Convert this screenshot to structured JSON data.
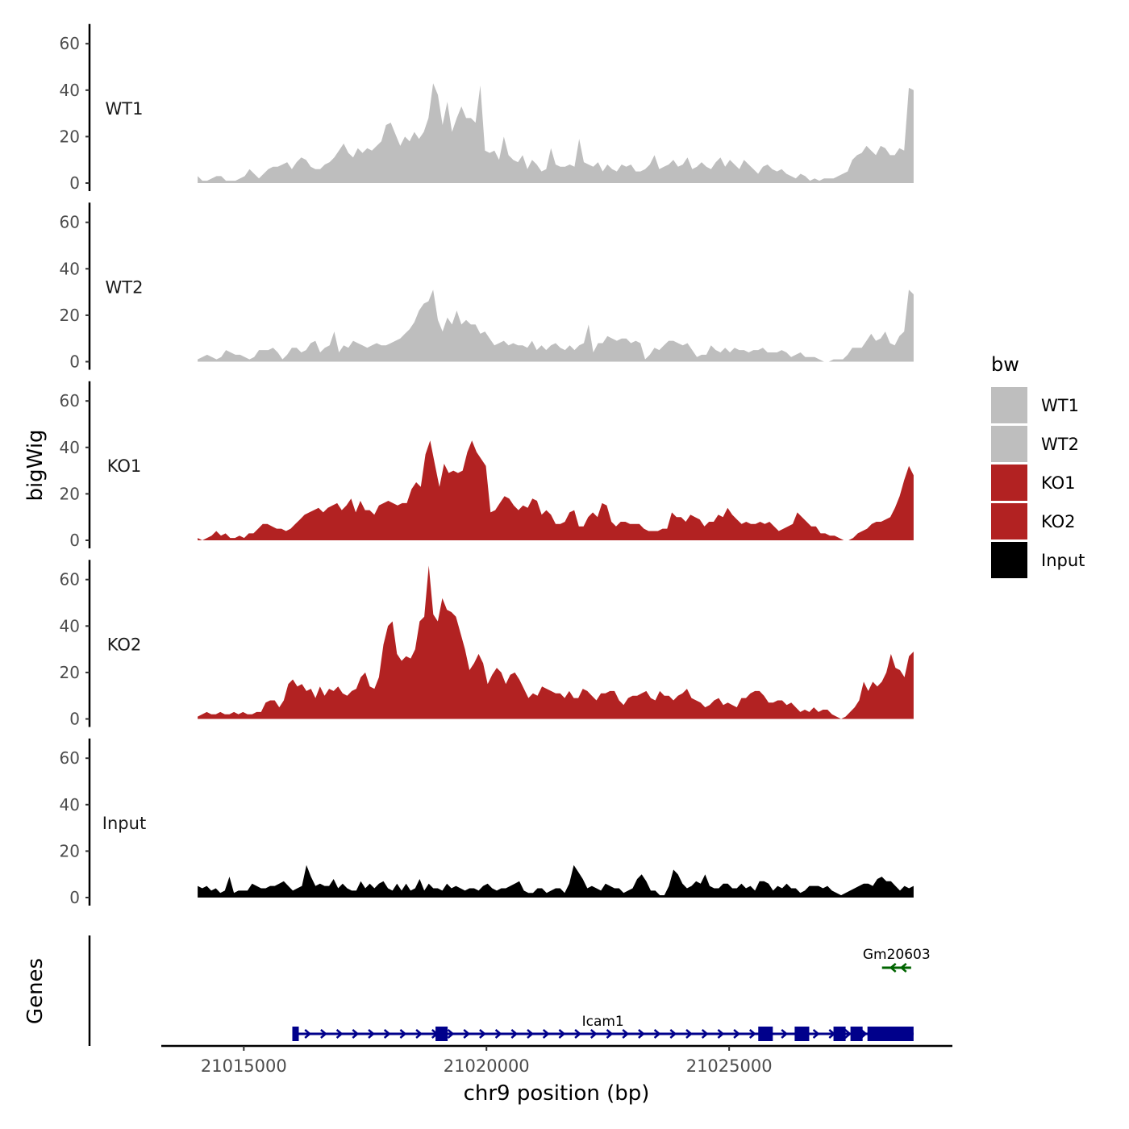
{
  "chart_data": {
    "type": "area",
    "ylabel": "bigWig",
    "xlabel": "chr9 position (bp)",
    "genes_label": "Genes",
    "y_ticks": [
      0,
      20,
      40,
      60
    ],
    "ylim": [
      0,
      65
    ],
    "x_ticks": [
      21015000,
      21020000,
      21025000
    ],
    "x_tick_labels": [
      "21015000",
      "21020000",
      "21025000"
    ],
    "xlim": [
      21013300,
      21029600
    ],
    "track_x_range": [
      21014050,
      21028800
    ],
    "legend": {
      "title": "bw",
      "position": "right",
      "entries": [
        {
          "label": "WT1",
          "color": "#bebebe"
        },
        {
          "label": "WT2",
          "color": "#bebebe"
        },
        {
          "label": "KO1",
          "color": "#b22222"
        },
        {
          "label": "KO2",
          "color": "#b22222"
        },
        {
          "label": "Input",
          "color": "#000000"
        }
      ]
    },
    "series": [
      {
        "name": "WT1",
        "color": "#bebebe",
        "values": [
          3,
          1,
          1,
          2,
          3,
          3,
          1,
          1,
          1,
          2,
          3,
          6,
          4,
          2,
          4,
          6,
          7,
          7,
          8,
          9,
          6,
          9,
          11,
          10,
          7,
          6,
          6,
          8,
          9,
          11,
          14,
          17,
          13,
          11,
          15,
          13,
          15,
          14,
          16,
          18,
          25,
          26,
          21,
          16,
          20,
          18,
          22,
          19,
          22,
          28,
          43,
          38,
          25,
          35,
          22,
          28,
          33,
          28,
          28,
          26,
          42,
          14,
          13,
          14,
          10,
          20,
          12,
          10,
          9,
          12,
          6,
          10,
          8,
          5,
          6,
          15,
          8,
          7,
          7,
          8,
          7,
          19,
          9,
          8,
          7,
          9,
          5,
          8,
          6,
          5,
          8,
          7,
          8,
          5,
          5,
          6,
          8,
          12,
          6,
          7,
          8,
          10,
          7,
          8,
          11,
          6,
          7,
          9,
          7,
          6,
          9,
          11,
          7,
          10,
          8,
          6,
          10,
          8,
          6,
          4,
          7,
          8,
          6,
          5,
          6,
          4,
          3,
          2,
          4,
          3,
          1,
          2,
          1,
          2,
          2,
          2,
          3,
          4,
          5,
          10,
          12,
          13,
          16,
          14,
          12,
          16,
          15,
          12,
          12,
          15,
          14,
          41,
          40
        ]
      },
      {
        "name": "WT2",
        "color": "#bebebe",
        "values": [
          1,
          2,
          3,
          2,
          1,
          2,
          5,
          4,
          3,
          3,
          2,
          1,
          2,
          5,
          5,
          5,
          6,
          4,
          1,
          3,
          6,
          6,
          4,
          5,
          8,
          9,
          4,
          6,
          7,
          13,
          4,
          7,
          6,
          9,
          8,
          7,
          6,
          7,
          8,
          7,
          7,
          8,
          9,
          10,
          12,
          14,
          17,
          22,
          25,
          26,
          31,
          18,
          13,
          19,
          16,
          22,
          16,
          18,
          16,
          16,
          12,
          13,
          10,
          7,
          8,
          9,
          7,
          8,
          7,
          7,
          6,
          9,
          5,
          7,
          5,
          7,
          8,
          6,
          5,
          7,
          5,
          7,
          8,
          16,
          4,
          8,
          8,
          11,
          10,
          9,
          10,
          10,
          8,
          9,
          8,
          1,
          3,
          6,
          5,
          7,
          9,
          9,
          8,
          7,
          8,
          5,
          2,
          3,
          3,
          7,
          5,
          4,
          6,
          4,
          6,
          5,
          5,
          4,
          5,
          5,
          6,
          4,
          4,
          4,
          5,
          4,
          2,
          3,
          4,
          2,
          2,
          2,
          1,
          0,
          0,
          1,
          1,
          1,
          3,
          6,
          6,
          6,
          9,
          12,
          9,
          10,
          13,
          8,
          7,
          11,
          13,
          31,
          29
        ]
      },
      {
        "name": "KO1",
        "color": "#b22222",
        "values": [
          1,
          0,
          1,
          2,
          4,
          2,
          3,
          1,
          1,
          2,
          1,
          3,
          3,
          5,
          7,
          7,
          6,
          5,
          5,
          4,
          5,
          7,
          9,
          11,
          12,
          13,
          14,
          12,
          14,
          15,
          16,
          13,
          15,
          18,
          12,
          17,
          13,
          13,
          11,
          15,
          16,
          17,
          16,
          15,
          16,
          16,
          22,
          25,
          23,
          37,
          43,
          33,
          23,
          33,
          29,
          30,
          29,
          30,
          38,
          43,
          38,
          35,
          32,
          12,
          13,
          16,
          19,
          18,
          15,
          13,
          15,
          14,
          18,
          17,
          11,
          13,
          11,
          7,
          7,
          8,
          12,
          13,
          6,
          6,
          10,
          12,
          10,
          16,
          15,
          8,
          6,
          8,
          8,
          7,
          7,
          7,
          5,
          4,
          4,
          4,
          5,
          5,
          12,
          10,
          10,
          8,
          11,
          10,
          9,
          6,
          8,
          8,
          11,
          10,
          14,
          11,
          9,
          7,
          8,
          7,
          7,
          8,
          7,
          8,
          6,
          4,
          5,
          6,
          7,
          12,
          10,
          8,
          6,
          6,
          3,
          3,
          2,
          2,
          1,
          0,
          0,
          1,
          3,
          4,
          5,
          7,
          8,
          8,
          9,
          10,
          14,
          19,
          26,
          32,
          28
        ]
      },
      {
        "name": "KO2",
        "color": "#b22222",
        "values": [
          1,
          2,
          3,
          2,
          2,
          3,
          2,
          2,
          3,
          2,
          3,
          2,
          2,
          3,
          3,
          7,
          8,
          8,
          5,
          8,
          15,
          17,
          14,
          15,
          12,
          13,
          9,
          14,
          10,
          13,
          12,
          14,
          11,
          10,
          12,
          13,
          18,
          20,
          14,
          13,
          18,
          32,
          40,
          42,
          28,
          25,
          27,
          26,
          30,
          42,
          44,
          66,
          45,
          42,
          52,
          47,
          46,
          44,
          37,
          30,
          21,
          24,
          28,
          24,
          15,
          19,
          22,
          20,
          15,
          19,
          20,
          17,
          13,
          9,
          11,
          10,
          14,
          13,
          12,
          11,
          11,
          9,
          12,
          9,
          9,
          13,
          12,
          10,
          8,
          11,
          11,
          12,
          12,
          8,
          6,
          9,
          10,
          10,
          11,
          12,
          9,
          8,
          12,
          10,
          10,
          8,
          10,
          11,
          13,
          9,
          8,
          7,
          5,
          6,
          8,
          9,
          6,
          7,
          6,
          5,
          9,
          9,
          11,
          12,
          12,
          10,
          7,
          7,
          8,
          8,
          6,
          7,
          5,
          3,
          4,
          3,
          5,
          3,
          4,
          4,
          2,
          1,
          0,
          1,
          3,
          5,
          8,
          16,
          12,
          16,
          14,
          16,
          20,
          28,
          22,
          21,
          18,
          27,
          29
        ]
      },
      {
        "name": "Input",
        "color": "#000000",
        "values": [
          5,
          4,
          5,
          3,
          4,
          2,
          3,
          9,
          2,
          3,
          3,
          3,
          6,
          5,
          4,
          4,
          5,
          5,
          6,
          7,
          5,
          3,
          4,
          5,
          14,
          9,
          5,
          6,
          5,
          5,
          8,
          4,
          6,
          4,
          3,
          3,
          7,
          4,
          6,
          4,
          6,
          7,
          4,
          3,
          6,
          3,
          6,
          3,
          4,
          8,
          3,
          6,
          4,
          4,
          3,
          6,
          4,
          5,
          4,
          3,
          4,
          4,
          3,
          5,
          6,
          4,
          3,
          4,
          4,
          5,
          6,
          7,
          3,
          2,
          2,
          4,
          4,
          2,
          3,
          4,
          4,
          2,
          6,
          14,
          11,
          8,
          4,
          5,
          4,
          3,
          6,
          5,
          4,
          4,
          2,
          3,
          4,
          8,
          10,
          7,
          3,
          3,
          1,
          1,
          5,
          12,
          10,
          6,
          4,
          5,
          7,
          6,
          10,
          5,
          4,
          4,
          6,
          6,
          4,
          4,
          6,
          4,
          5,
          3,
          7,
          7,
          6,
          3,
          5,
          4,
          6,
          4,
          4,
          2,
          3,
          5,
          5,
          5,
          4,
          5,
          3,
          2,
          1,
          2,
          3,
          4,
          5,
          6,
          6,
          5,
          8,
          9,
          7,
          7,
          5,
          3,
          5,
          4,
          5
        ]
      }
    ],
    "genes": [
      {
        "name": "Icam1",
        "strand": "+",
        "color": "#00008b",
        "start": 21016000,
        "end": 21028800,
        "exons": [
          [
            21016000,
            21016100
          ],
          [
            21018950,
            21019200
          ],
          [
            21025600,
            21025900
          ],
          [
            21026350,
            21026650
          ],
          [
            21027150,
            21027400
          ],
          [
            21027500,
            21027750
          ],
          [
            21027850,
            21028800
          ]
        ]
      },
      {
        "name": "Gm20603",
        "strand": "-",
        "color": "#006400",
        "start": 21028150,
        "end": 21028750,
        "exons": []
      }
    ]
  }
}
